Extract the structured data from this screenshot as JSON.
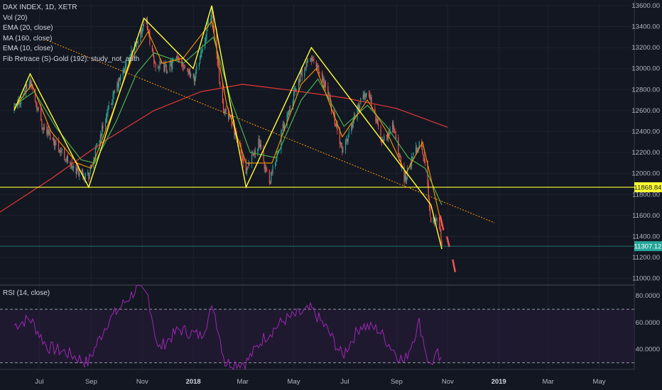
{
  "legend": {
    "title": "DAX INDEX, 1D, XETR",
    "lines": [
      "Vol (20)",
      "EMA (20, close)",
      "MA (160, close)",
      "EMA (10, close)",
      "Fib Retrace (S)-Gold (192): study_not_auth"
    ],
    "rsi": "RSI (14, close)"
  },
  "colors": {
    "background": "#131722",
    "grid": "#1e222d",
    "up": "#26a69a",
    "down": "#ef5350",
    "ema20": "#4caf50",
    "ema10": "#ff9800",
    "ma160": "#e53935",
    "pattern": "#ffff33",
    "trend": "#ff9800",
    "rsi": "#9c27b0",
    "rsi_band": "#2a1b3d",
    "price_label": "#26a69a",
    "level_label": "#ffff33"
  },
  "chart_data": [
    {
      "type": "candlestick",
      "title": "DAX INDEX, 1D, XETR",
      "x_ticks": [
        "Jul",
        "Sep",
        "Nov",
        "2018",
        "Mar",
        "May",
        "Jul",
        "Sep",
        "Nov",
        "2019",
        "Mar",
        "May"
      ],
      "x_ticks_bold": [
        "2018",
        "2019"
      ],
      "y_ticks": [
        11000,
        11200,
        11400,
        11600,
        11800,
        12000,
        12200,
        12400,
        12600,
        12800,
        13000,
        13200,
        13400,
        13600
      ],
      "ylim": [
        10950,
        13620
      ],
      "last_price": "11307.12",
      "horizontal_level": "11868.84",
      "pattern_points": [
        {
          "date": "2017-06-01",
          "value": 12600
        },
        {
          "date": "2017-06-20",
          "value": 12950
        },
        {
          "date": "2017-08-29",
          "value": 11870
        },
        {
          "date": "2017-11-03",
          "value": 13480
        },
        {
          "date": "2018-01-01",
          "value": 13000
        },
        {
          "date": "2018-01-23",
          "value": 13600
        },
        {
          "date": "2018-03-05",
          "value": 11870
        },
        {
          "date": "2018-05-22",
          "value": 13200
        },
        {
          "date": "2018-10-12",
          "value": 11700
        },
        {
          "date": "2018-10-25",
          "value": 11280
        }
      ],
      "trend_line": [
        {
          "date": "2017-07-10",
          "value": 13270
        },
        {
          "date": "2018-12-27",
          "value": 11530
        }
      ],
      "projection": [
        {
          "from": {
            "date": "2018-10-23",
            "value": 11600
          },
          "to": {
            "date": "2018-10-27",
            "value": 11460
          }
        },
        {
          "from": {
            "date": "2018-10-31",
            "value": 11400
          },
          "to": {
            "date": "2018-11-03",
            "value": 11300
          }
        },
        {
          "from": {
            "date": "2018-11-07",
            "value": 11180
          },
          "to": {
            "date": "2018-11-10",
            "value": 11060
          }
        }
      ],
      "closes": [
        {
          "date": "2017-06-01",
          "value": 12600
        },
        {
          "date": "2017-06-20",
          "value": 12880
        },
        {
          "date": "2017-07-05",
          "value": 12450
        },
        {
          "date": "2017-07-20",
          "value": 12300
        },
        {
          "date": "2017-08-10",
          "value": 12050
        },
        {
          "date": "2017-08-29",
          "value": 11980
        },
        {
          "date": "2017-09-15",
          "value": 12450
        },
        {
          "date": "2017-10-05",
          "value": 12900
        },
        {
          "date": "2017-10-25",
          "value": 13250
        },
        {
          "date": "2017-11-06",
          "value": 13450
        },
        {
          "date": "2017-11-15",
          "value": 13050
        },
        {
          "date": "2017-11-30",
          "value": 13000
        },
        {
          "date": "2017-12-15",
          "value": 13100
        },
        {
          "date": "2018-01-02",
          "value": 12900
        },
        {
          "date": "2018-01-23",
          "value": 13550
        },
        {
          "date": "2018-02-05",
          "value": 12650
        },
        {
          "date": "2018-02-20",
          "value": 12400
        },
        {
          "date": "2018-03-05",
          "value": 12000
        },
        {
          "date": "2018-03-20",
          "value": 12300
        },
        {
          "date": "2018-04-02",
          "value": 11900
        },
        {
          "date": "2018-04-20",
          "value": 12500
        },
        {
          "date": "2018-05-10",
          "value": 12950
        },
        {
          "date": "2018-05-22",
          "value": 13100
        },
        {
          "date": "2018-06-10",
          "value": 12800
        },
        {
          "date": "2018-06-28",
          "value": 12200
        },
        {
          "date": "2018-07-15",
          "value": 12600
        },
        {
          "date": "2018-07-28",
          "value": 12800
        },
        {
          "date": "2018-08-15",
          "value": 12300
        },
        {
          "date": "2018-08-28",
          "value": 12450
        },
        {
          "date": "2018-09-10",
          "value": 11950
        },
        {
          "date": "2018-09-28",
          "value": 12300
        },
        {
          "date": "2018-10-05",
          "value": 12100
        },
        {
          "date": "2018-10-12",
          "value": 11550
        },
        {
          "date": "2018-10-20",
          "value": 11600
        },
        {
          "date": "2018-10-25",
          "value": 11307
        }
      ],
      "ema20": [
        {
          "date": "2017-06-01",
          "value": 12650
        },
        {
          "date": "2017-06-25",
          "value": 12780
        },
        {
          "date": "2017-07-20",
          "value": 12450
        },
        {
          "date": "2017-08-20",
          "value": 12130
        },
        {
          "date": "2017-09-05",
          "value": 12100
        },
        {
          "date": "2017-10-01",
          "value": 12500
        },
        {
          "date": "2017-10-25",
          "value": 12950
        },
        {
          "date": "2017-11-15",
          "value": 13150
        },
        {
          "date": "2017-12-20",
          "value": 13050
        },
        {
          "date": "2018-01-25",
          "value": 13300
        },
        {
          "date": "2018-02-15",
          "value": 12700
        },
        {
          "date": "2018-03-10",
          "value": 12200
        },
        {
          "date": "2018-04-10",
          "value": 12150
        },
        {
          "date": "2018-05-10",
          "value": 12700
        },
        {
          "date": "2018-05-30",
          "value": 12900
        },
        {
          "date": "2018-06-30",
          "value": 12450
        },
        {
          "date": "2018-07-28",
          "value": 12650
        },
        {
          "date": "2018-08-20",
          "value": 12450
        },
        {
          "date": "2018-09-15",
          "value": 12150
        },
        {
          "date": "2018-10-05",
          "value": 12050
        },
        {
          "date": "2018-10-25",
          "value": 11700
        }
      ],
      "ema10": [
        {
          "date": "2017-06-01",
          "value": 12620
        },
        {
          "date": "2017-06-22",
          "value": 12850
        },
        {
          "date": "2017-07-15",
          "value": 12400
        },
        {
          "date": "2017-08-15",
          "value": 12100
        },
        {
          "date": "2017-09-01",
          "value": 12050
        },
        {
          "date": "2017-09-25",
          "value": 12550
        },
        {
          "date": "2017-10-20",
          "value": 13100
        },
        {
          "date": "2017-11-08",
          "value": 13350
        },
        {
          "date": "2017-11-25",
          "value": 13050
        },
        {
          "date": "2017-12-20",
          "value": 13100
        },
        {
          "date": "2018-01-23",
          "value": 13450
        },
        {
          "date": "2018-02-10",
          "value": 12650
        },
        {
          "date": "2018-03-05",
          "value": 12100
        },
        {
          "date": "2018-04-05",
          "value": 12100
        },
        {
          "date": "2018-05-10",
          "value": 12850
        },
        {
          "date": "2018-05-28",
          "value": 13000
        },
        {
          "date": "2018-06-28",
          "value": 12350
        },
        {
          "date": "2018-07-28",
          "value": 12700
        },
        {
          "date": "2018-08-20",
          "value": 12400
        },
        {
          "date": "2018-09-12",
          "value": 12000
        },
        {
          "date": "2018-10-02",
          "value": 12300
        },
        {
          "date": "2018-10-25",
          "value": 11500
        }
      ],
      "ma160": [
        {
          "date": "2017-05-01",
          "value": 11560
        },
        {
          "date": "2017-07-15",
          "value": 11950
        },
        {
          "date": "2017-09-15",
          "value": 12300
        },
        {
          "date": "2017-11-15",
          "value": 12600
        },
        {
          "date": "2018-01-10",
          "value": 12780
        },
        {
          "date": "2018-03-01",
          "value": 12850
        },
        {
          "date": "2018-05-01",
          "value": 12790
        },
        {
          "date": "2018-07-01",
          "value": 12720
        },
        {
          "date": "2018-09-01",
          "value": 12620
        },
        {
          "date": "2018-11-01",
          "value": 12440
        }
      ]
    },
    {
      "type": "line",
      "title": "RSI (14, close)",
      "y_ticks": [
        40,
        60,
        80
      ],
      "ylim": [
        25,
        87
      ],
      "band": [
        30,
        70
      ],
      "values": [
        {
          "date": "2017-06-01",
          "value": 58
        },
        {
          "date": "2017-06-20",
          "value": 63
        },
        {
          "date": "2017-07-10",
          "value": 42
        },
        {
          "date": "2017-08-01",
          "value": 38
        },
        {
          "date": "2017-08-28",
          "value": 30
        },
        {
          "date": "2017-09-20",
          "value": 60
        },
        {
          "date": "2017-10-15",
          "value": 78
        },
        {
          "date": "2017-10-25",
          "value": 85
        },
        {
          "date": "2017-11-08",
          "value": 80
        },
        {
          "date": "2017-11-20",
          "value": 40
        },
        {
          "date": "2017-12-15",
          "value": 55
        },
        {
          "date": "2018-01-10",
          "value": 50
        },
        {
          "date": "2018-01-25",
          "value": 72
        },
        {
          "date": "2018-02-08",
          "value": 30
        },
        {
          "date": "2018-03-05",
          "value": 30
        },
        {
          "date": "2018-03-25",
          "value": 48
        },
        {
          "date": "2018-04-20",
          "value": 62
        },
        {
          "date": "2018-05-22",
          "value": 70
        },
        {
          "date": "2018-06-10",
          "value": 55
        },
        {
          "date": "2018-06-28",
          "value": 35
        },
        {
          "date": "2018-07-20",
          "value": 58
        },
        {
          "date": "2018-08-10",
          "value": 55
        },
        {
          "date": "2018-08-25",
          "value": 42
        },
        {
          "date": "2018-09-10",
          "value": 30
        },
        {
          "date": "2018-09-28",
          "value": 60
        },
        {
          "date": "2018-10-10",
          "value": 28
        },
        {
          "date": "2018-10-20",
          "value": 36
        },
        {
          "date": "2018-10-25",
          "value": 28
        }
      ]
    }
  ]
}
